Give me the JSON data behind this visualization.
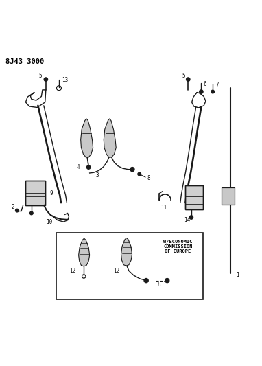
{
  "title": "8J43 3000",
  "bg_color": "#ffffff",
  "line_color": "#1a1a1a",
  "label_color": "#111111",
  "figsize": [
    3.82,
    5.33
  ],
  "dpi": 100,
  "box_text": "W/ECONOMIC\nCOMMISSION\nOF EUROPE"
}
